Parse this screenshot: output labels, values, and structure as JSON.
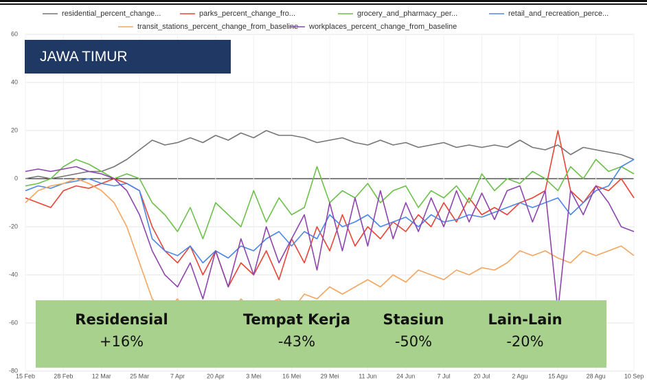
{
  "chart_data": {
    "type": "line",
    "categories": [
      "15 Feb",
      null,
      null,
      "28 Feb",
      null,
      null,
      "12 Mar",
      null,
      null,
      "25 Mar",
      null,
      null,
      "7 Apr",
      null,
      null,
      "20 Apr",
      null,
      null,
      "3 Mei",
      null,
      null,
      "16 Mei",
      null,
      null,
      "29 Mei",
      null,
      null,
      "11 Jun",
      null,
      null,
      "24 Jun",
      null,
      null,
      "7 Jul",
      null,
      null,
      "20 Jul",
      null,
      null,
      "2 Agu",
      null,
      null,
      "15 Agu",
      null,
      null,
      "28 Agu",
      null,
      null,
      "10 Sep"
    ],
    "series": [
      {
        "name": "residential_percent_change...",
        "color": "#757575",
        "values": [
          0,
          1,
          0,
          1,
          2,
          3,
          3,
          5,
          8,
          12,
          16,
          14,
          15,
          17,
          15,
          18,
          16,
          19,
          17,
          20,
          18,
          18,
          17,
          15,
          16,
          17,
          15,
          14,
          16,
          14,
          15,
          13,
          14,
          15,
          13,
          14,
          13,
          14,
          13,
          16,
          13,
          12,
          14,
          10,
          13,
          12,
          11,
          10,
          8
        ]
      },
      {
        "name": "parks_percent_change_fro...",
        "color": "#ea4335",
        "values": [
          -8,
          -10,
          -12,
          -5,
          -3,
          -4,
          -2,
          0,
          -2,
          -5,
          -20,
          -30,
          -35,
          -28,
          -40,
          -30,
          -45,
          -35,
          -40,
          -30,
          -42,
          -25,
          -35,
          -20,
          -30,
          -15,
          -28,
          -20,
          -25,
          -18,
          -22,
          -15,
          -20,
          -10,
          -18,
          -8,
          -15,
          -12,
          -15,
          -10,
          -8,
          -5,
          20,
          -5,
          -10,
          -3,
          -5,
          0,
          -8
        ]
      },
      {
        "name": "grocery_and_pharmacy_per...",
        "color": "#6cc04a",
        "values": [
          -3,
          -2,
          0,
          5,
          8,
          6,
          3,
          0,
          2,
          0,
          -10,
          -15,
          -22,
          -12,
          -25,
          -10,
          -15,
          -20,
          -5,
          -18,
          -8,
          -15,
          -12,
          5,
          -10,
          -5,
          -8,
          -2,
          -10,
          -5,
          -3,
          -12,
          -5,
          -8,
          -3,
          -10,
          2,
          -5,
          0,
          -2,
          3,
          0,
          -5,
          5,
          0,
          8,
          3,
          5,
          2
        ]
      },
      {
        "name": "retail_and_recreation_perce...",
        "color": "#4a86e8",
        "values": [
          -5,
          -3,
          -4,
          -2,
          -1,
          0,
          -2,
          -3,
          -2,
          -5,
          -25,
          -30,
          -32,
          -28,
          -35,
          -30,
          -33,
          -28,
          -30,
          -25,
          -22,
          -28,
          -22,
          -25,
          -15,
          -20,
          -18,
          -15,
          -20,
          -18,
          -16,
          -20,
          -15,
          -18,
          -17,
          -15,
          -16,
          -14,
          -12,
          -10,
          -12,
          -10,
          -8,
          -15,
          -10,
          -5,
          -3,
          5,
          8
        ]
      },
      {
        "name": "transit_stations_percent_change_from_baseline",
        "color": "#f6a55f",
        "values": [
          -10,
          -5,
          -3,
          -2,
          0,
          -2,
          -5,
          -10,
          -20,
          -35,
          -50,
          -55,
          -50,
          -58,
          -55,
          -52,
          -58,
          -50,
          -55,
          -52,
          -50,
          -55,
          -48,
          -50,
          -45,
          -48,
          -45,
          -42,
          -45,
          -40,
          -43,
          -38,
          -40,
          -42,
          -38,
          -40,
          -37,
          -38,
          -35,
          -30,
          -32,
          -30,
          -33,
          -35,
          -30,
          -32,
          -30,
          -28,
          -32
        ]
      },
      {
        "name": "workplaces_percent_change_from_baseline",
        "color": "#8e44ad",
        "values": [
          3,
          4,
          3,
          4,
          5,
          3,
          2,
          0,
          -5,
          -15,
          -30,
          -40,
          -45,
          -35,
          -50,
          -30,
          -45,
          -25,
          -40,
          -20,
          -35,
          -25,
          -15,
          -38,
          -10,
          -30,
          -8,
          -28,
          -5,
          -25,
          -10,
          -22,
          -8,
          -20,
          -5,
          -18,
          -6,
          -17,
          -5,
          -3,
          -18,
          -5,
          -55,
          -5,
          -15,
          -3,
          -10,
          -20,
          -22
        ]
      }
    ],
    "ylim": [
      -80,
      60
    ],
    "yticks": [
      -80,
      -60,
      -40,
      -20,
      0,
      20,
      40,
      60
    ],
    "grid": true
  },
  "title_box": "JAWA TIMUR",
  "summary": [
    {
      "label": "Residensial",
      "value": "+16%"
    },
    {
      "label": "Tempat Kerja",
      "value": "-43%"
    },
    {
      "label": "Stasiun",
      "value": "-50%"
    },
    {
      "label": "Lain-Lain",
      "value": "-20%"
    }
  ]
}
